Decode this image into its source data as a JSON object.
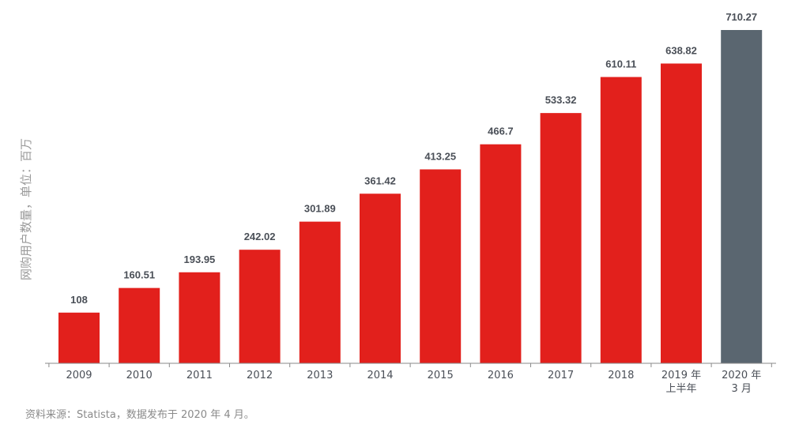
{
  "chart_data": {
    "type": "bar",
    "categories": [
      "2009",
      "2010",
      "2011",
      "2012",
      "2013",
      "2014",
      "2015",
      "2016",
      "2017",
      "2018",
      "2019 年\n上半年",
      "2020 年\n3 月"
    ],
    "values": [
      108,
      160.51,
      193.95,
      242.02,
      301.89,
      361.42,
      413.25,
      466.7,
      533.32,
      610.11,
      638.82,
      710.27
    ],
    "value_labels": [
      "108",
      "160.51",
      "193.95",
      "242.02",
      "301.89",
      "361.42",
      "413.25",
      "466.7",
      "533.32",
      "610.11",
      "638.82",
      "710.27"
    ],
    "title": "",
    "xlabel": "",
    "ylabel": "网购用户数量，单位：百万",
    "ylim": [
      0,
      710.27
    ],
    "grid": false,
    "legend": "none",
    "colors": {
      "bar": "#e2201c",
      "highlight_bar": "#5a6670",
      "axis": "#8a8a8a",
      "label": "#4a4f57"
    },
    "highlight_index": 11
  },
  "source_note": "资料来源：Statista，数据发布于 2020 年 4 月。"
}
